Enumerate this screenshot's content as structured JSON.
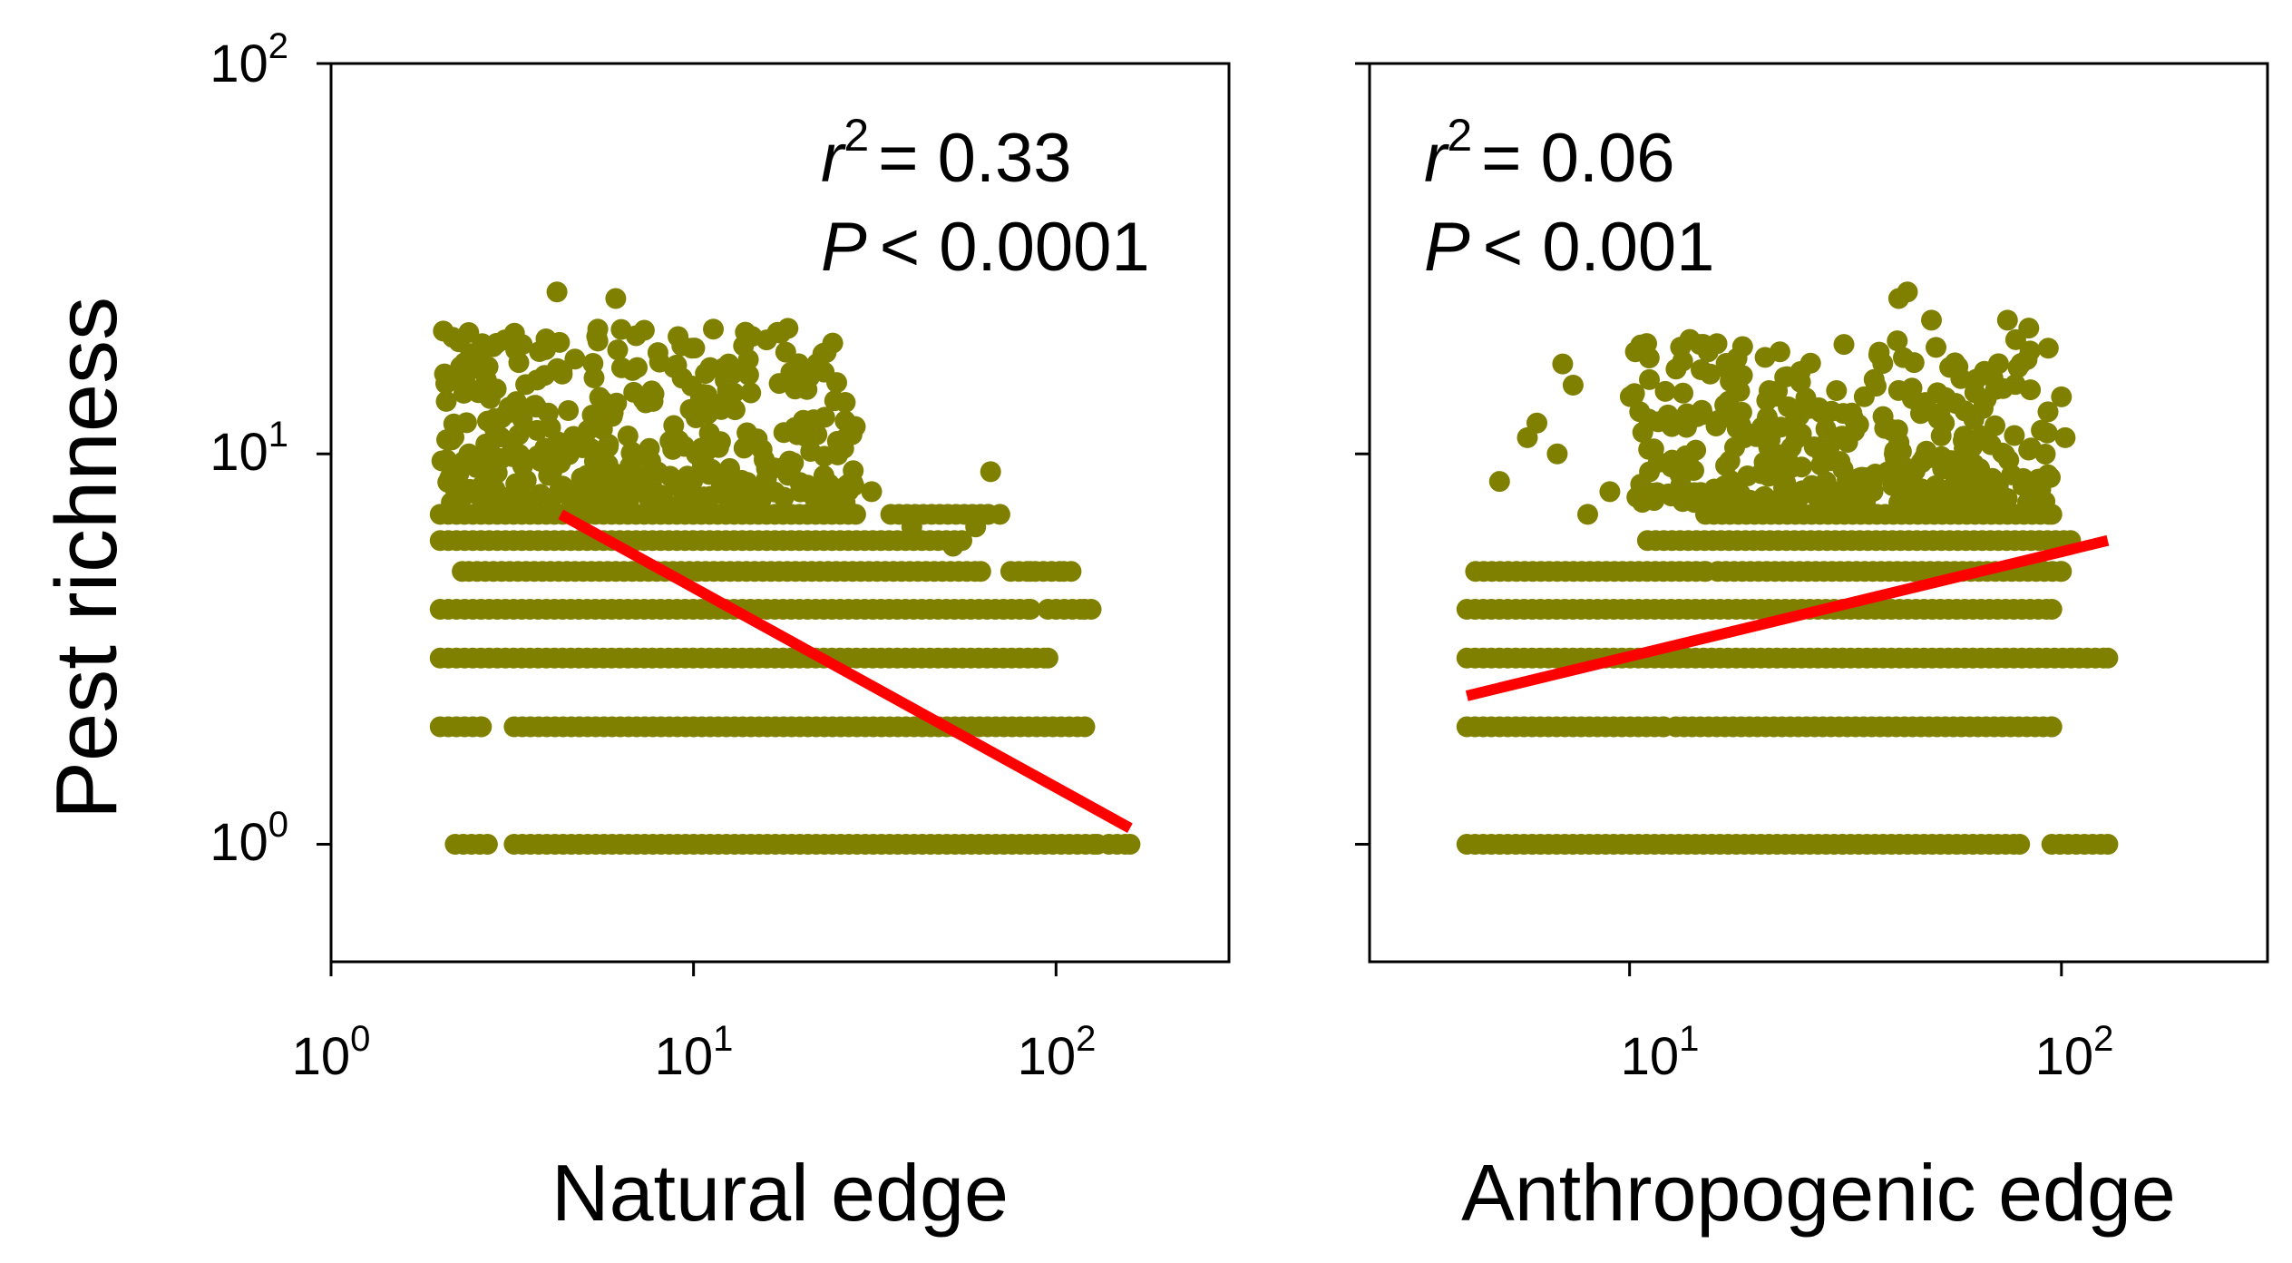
{
  "chart_data": [
    {
      "type": "scatter",
      "panel": "left",
      "xlabel": "Natural edge",
      "ylabel": "Pest richness",
      "xscale": "log",
      "yscale": "log",
      "xlim": [
        1,
        300
      ],
      "ylim": [
        0.5,
        100
      ],
      "xticks": [
        {
          "base": "10",
          "exp": "0"
        },
        {
          "base": "10",
          "exp": "1"
        },
        {
          "base": "10",
          "exp": "2"
        }
      ],
      "yticks": [
        {
          "base": "10",
          "exp": "0"
        },
        {
          "base": "10",
          "exp": "1"
        },
        {
          "base": "10",
          "exp": "2"
        }
      ],
      "stats": {
        "r2_label": "r",
        "r2_exp": "2",
        "r2_value": "= 0.33",
        "p_label": "P",
        "p_value": "< 0.0001"
      },
      "color": "#808000",
      "fit_color": "#ff0000",
      "fit_line": {
        "x": [
          4.3,
          160
        ],
        "y": [
          7.0,
          1.1
        ]
      },
      "richness_bands": [
        {
          "y": 1,
          "segments": [
            [
              2.2,
              2.7
            ],
            [
              3.2,
              130
            ],
            [
              140,
              160
            ]
          ]
        },
        {
          "y": 2,
          "segments": [
            [
              2.0,
              2.6
            ],
            [
              3.2,
              120
            ]
          ]
        },
        {
          "y": 3,
          "segments": [
            [
              2.0,
              95
            ]
          ]
        },
        {
          "y": 4,
          "segments": [
            [
              2.0,
              85
            ],
            [
              95,
              120
            ]
          ]
        },
        {
          "y": 5,
          "segments": [
            [
              2.4,
              62
            ],
            [
              75,
              105
            ]
          ]
        },
        {
          "y": 6,
          "segments": [
            [
              2.0,
              55
            ]
          ]
        },
        {
          "y": 7,
          "segments": [
            [
              2.0,
              28
            ],
            [
              35,
              65
            ]
          ]
        }
      ],
      "cloud": {
        "x_range": [
          2.0,
          28
        ],
        "y_range": [
          7.5,
          21
        ],
        "count": 380,
        "peak_y": 26
      },
      "extra_points": [
        [
          4.2,
          26
        ],
        [
          6.1,
          25
        ],
        [
          13.9,
          20.5
        ],
        [
          14.5,
          20
        ],
        [
          12.5,
          17
        ],
        [
          31,
          8.0
        ],
        [
          40,
          6.5
        ],
        [
          52,
          5.8
        ],
        [
          66,
          9.0
        ],
        [
          65,
          7.0
        ],
        [
          70,
          7.0
        ],
        [
          60,
          6.5
        ],
        [
          85,
          5.0
        ],
        [
          110,
          5.0
        ],
        [
          125,
          4.0
        ],
        [
          2.3,
          5.0
        ]
      ]
    },
    {
      "type": "scatter",
      "panel": "right",
      "xlabel": "Anthropogenic edge",
      "xscale": "log",
      "yscale": "log",
      "xlim": [
        2.5,
        300
      ],
      "ylim": [
        0.5,
        100
      ],
      "xticks": [
        {
          "base": "10",
          "exp": "1"
        },
        {
          "base": "10",
          "exp": "2"
        }
      ],
      "stats": {
        "r2_label": "r",
        "r2_exp": "2",
        "r2_value": "= 0.06",
        "p_label": "P",
        "p_value": "< 0.001"
      },
      "color": "#808000",
      "fit_color": "#ff0000",
      "fit_line": {
        "x": [
          4.2,
          128
        ],
        "y": [
          2.4,
          6.0
        ]
      },
      "richness_bands": [
        {
          "y": 1,
          "segments": [
            [
              4.2,
              80
            ],
            [
              95,
              128
            ]
          ]
        },
        {
          "y": 2,
          "segments": [
            [
              4.2,
              12
            ],
            [
              12.8,
              95
            ]
          ]
        },
        {
          "y": 3,
          "segments": [
            [
              4.2,
              128
            ]
          ]
        },
        {
          "y": 4,
          "segments": [
            [
              4.2,
              95
            ]
          ]
        },
        {
          "y": 5,
          "segments": [
            [
              4.4,
              15
            ],
            [
              16,
              100
            ]
          ]
        },
        {
          "y": 6,
          "segments": [
            [
              11,
              105
            ]
          ]
        },
        {
          "y": 7,
          "segments": [
            [
              15,
              95
            ]
          ]
        }
      ],
      "cloud": {
        "x_range": [
          10,
          95
        ],
        "y_range": [
          7.5,
          20
        ],
        "count": 340,
        "peak_y": 25
      },
      "extra_points": [
        [
          42,
          25
        ],
        [
          44,
          26
        ],
        [
          50,
          22
        ],
        [
          75,
          22
        ],
        [
          84,
          21
        ],
        [
          7.0,
          17
        ],
        [
          7.4,
          15
        ],
        [
          5.0,
          8.5
        ],
        [
          6.1,
          12
        ],
        [
          5.8,
          11
        ],
        [
          6.8,
          10
        ],
        [
          100,
          14
        ],
        [
          102,
          11
        ],
        [
          8.0,
          7.0
        ],
        [
          9.0,
          8.0
        ]
      ]
    }
  ]
}
